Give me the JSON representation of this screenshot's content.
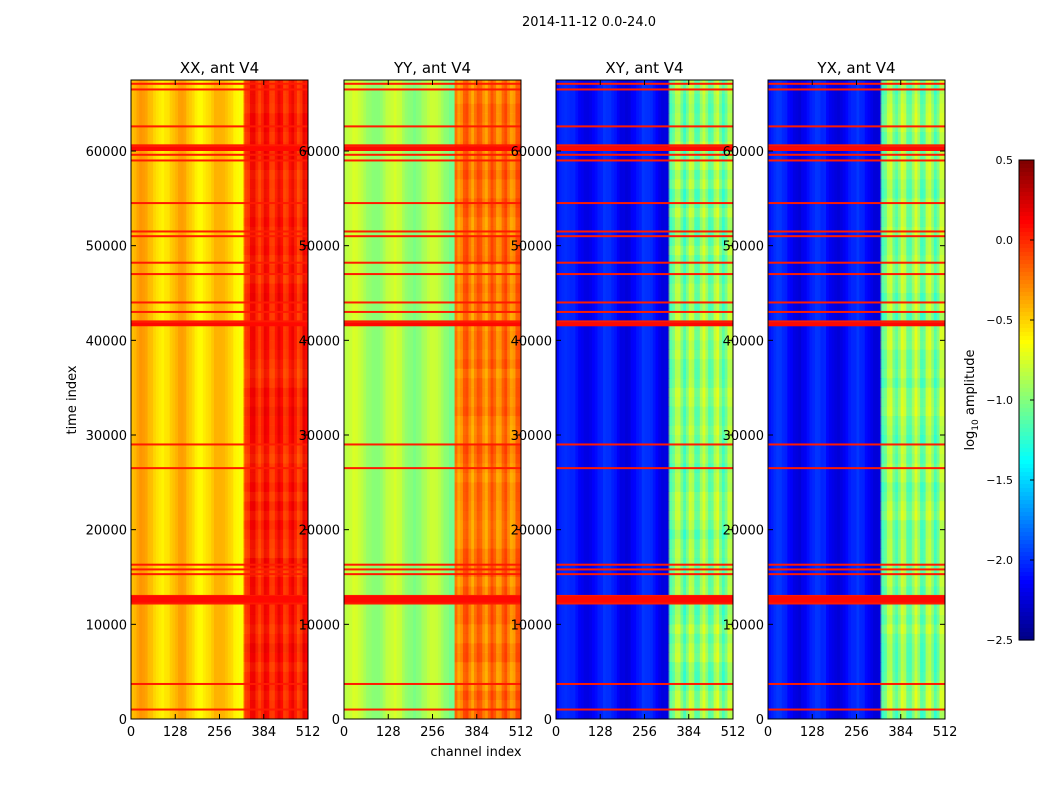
{
  "figure": {
    "suptitle": "2014-11-12 0.0-24.0",
    "xlabel": "channel index",
    "ylabel": "time index"
  },
  "chart_data": {
    "type": "heatmap",
    "title": "2014-11-12 0.0-24.0",
    "xlabel": "channel index",
    "ylabel": "time index",
    "xlim": [
      0,
      512
    ],
    "ylim": [
      0,
      67500
    ],
    "xticks": [
      0,
      128,
      256,
      384,
      512
    ],
    "yticks": [
      0,
      10000,
      20000,
      30000,
      40000,
      50000,
      60000
    ],
    "colorscale": "jet",
    "colorbar": {
      "label": "log10 amplitude",
      "label_main": "log",
      "label_sub": "10",
      "label_rest": " amplitude",
      "range": [
        -2.5,
        0.5
      ],
      "ticks": [
        0.5,
        0.0,
        -0.5,
        -1.0,
        -1.5,
        -2.0,
        -2.5
      ],
      "tick_labels": [
        "0.5",
        "0.0",
        "−0.5",
        "−1.0",
        "−1.5",
        "−2.0",
        "−2.5"
      ]
    },
    "flag_rows": [
      1000,
      3700,
      12200,
      12700,
      13000,
      15300,
      15800,
      16300,
      26500,
      29000,
      41600,
      42000,
      43000,
      44000,
      47000,
      48200,
      51000,
      51500,
      54500,
      59000,
      59600,
      60200,
      60600,
      62600,
      66500,
      67100
    ],
    "panels": [
      {
        "title": "XX, ant V4",
        "base_value": -0.45,
        "band": {
          "start_channel": 325,
          "end_channel": 512,
          "value": 0.02,
          "variation": 0.22
        },
        "left_gradient": -0.1
      },
      {
        "title": "YY, ant V4",
        "base_value": -0.85,
        "band": {
          "start_channel": 320,
          "end_channel": 512,
          "value": -0.25,
          "variation": 0.25
        },
        "left_gradient": -0.1
      },
      {
        "title": "XY, ant V4",
        "base_value": -2.1,
        "band": {
          "start_channel": 325,
          "end_channel": 512,
          "value": -1.0,
          "variation": 0.35
        },
        "left_gradient": 0.0
      },
      {
        "title": "YX, ant V4",
        "base_value": -2.1,
        "band": {
          "start_channel": 325,
          "end_channel": 512,
          "value": -1.0,
          "variation": 0.35
        },
        "left_gradient": 0.0
      }
    ]
  }
}
